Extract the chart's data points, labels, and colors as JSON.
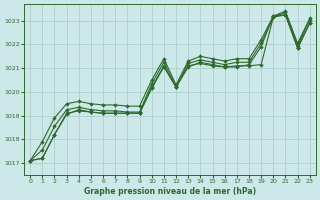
{
  "xlabel": "Graphe pression niveau de la mer (hPa)",
  "bg_color": "#cde8e8",
  "line_color": "#2d6a2d",
  "grid_color": "#aac8c8",
  "xlim": [
    -0.5,
    23.5
  ],
  "ylim": [
    1016.5,
    1023.7
  ],
  "yticks": [
    1017,
    1018,
    1019,
    1020,
    1021,
    1022,
    1023
  ],
  "xticks": [
    0,
    1,
    2,
    3,
    4,
    5,
    6,
    7,
    8,
    9,
    10,
    11,
    12,
    13,
    14,
    15,
    16,
    17,
    18,
    19,
    20,
    21,
    22,
    23
  ],
  "lines": [
    [
      1017.1,
      1017.2,
      1018.2,
      1019.1,
      1019.2,
      1019.15,
      1019.1,
      1019.1,
      1019.1,
      1019.1,
      1020.2,
      1021.1,
      1020.2,
      1021.1,
      1021.2,
      1021.1,
      1021.05,
      1021.1,
      1021.1,
      1021.15,
      1023.15,
      1023.25,
      1021.85,
      1022.9
    ],
    [
      1017.1,
      1017.2,
      1018.2,
      1019.05,
      1019.25,
      1019.15,
      1019.1,
      1019.1,
      1019.1,
      1019.1,
      1020.15,
      1021.05,
      1020.2,
      1021.05,
      1021.25,
      1021.15,
      1021.05,
      1021.05,
      1021.15,
      1021.9,
      1023.2,
      1023.25,
      1021.85,
      1022.9
    ],
    [
      1017.1,
      1017.55,
      1018.55,
      1019.25,
      1019.35,
      1019.25,
      1019.2,
      1019.2,
      1019.15,
      1019.15,
      1020.35,
      1021.25,
      1020.2,
      1021.2,
      1021.35,
      1021.25,
      1021.15,
      1021.25,
      1021.25,
      1022.05,
      1023.15,
      1023.35,
      1021.95,
      1023.05
    ],
    [
      1017.1,
      1017.9,
      1018.9,
      1019.5,
      1019.6,
      1019.5,
      1019.45,
      1019.45,
      1019.4,
      1019.4,
      1020.5,
      1021.4,
      1020.3,
      1021.3,
      1021.5,
      1021.4,
      1021.3,
      1021.4,
      1021.4,
      1022.2,
      1023.2,
      1023.4,
      1022.05,
      1023.1
    ]
  ]
}
